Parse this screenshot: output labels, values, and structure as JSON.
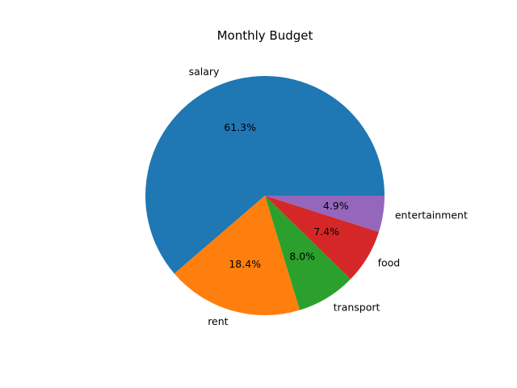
{
  "chart_data": {
    "type": "pie",
    "title": "Monthly Budget",
    "start_angle_deg": 0,
    "direction": "counterclockwise",
    "slices": [
      {
        "label": "salary",
        "percent_label": "61.3%",
        "value": 61.3,
        "color": "#1f77b4"
      },
      {
        "label": "rent",
        "percent_label": "18.4%",
        "value": 18.4,
        "color": "#ff7f0e"
      },
      {
        "label": "transport",
        "percent_label": "8.0%",
        "value": 8.0,
        "color": "#2ca02c"
      },
      {
        "label": "food",
        "percent_label": "7.4%",
        "value": 7.4,
        "color": "#d62728"
      },
      {
        "label": "entertainment",
        "percent_label": "4.9%",
        "value": 4.9,
        "color": "#9467bd"
      }
    ]
  }
}
